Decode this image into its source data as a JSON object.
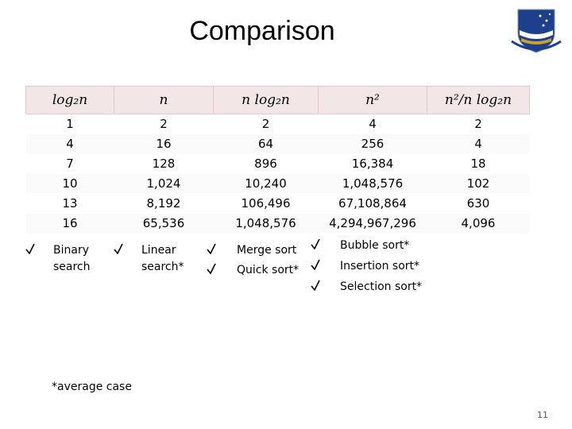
{
  "header": {
    "title": "Comparison"
  },
  "table": {
    "columns": [
      "log₂n",
      "n",
      "n log₂n",
      "n²",
      "n²/n log₂n"
    ],
    "rows": [
      [
        "1",
        "2",
        "2",
        "4",
        "2"
      ],
      [
        "4",
        "16",
        "64",
        "256",
        "4"
      ],
      [
        "7",
        "128",
        "896",
        "16,384",
        "18"
      ],
      [
        "10",
        "1,024",
        "10,240",
        "1,048,576",
        "102"
      ],
      [
        "13",
        "8,192",
        "106,496",
        "67,108,864",
        "630"
      ],
      [
        "16",
        "65,536",
        "1,048,576",
        "4,294,967,296",
        "4,096"
      ]
    ]
  },
  "lists": [
    {
      "items": [
        "Binary search"
      ]
    },
    {
      "items": [
        "Linear search*"
      ]
    },
    {
      "items": [
        "Merge sort",
        "Quick sort*"
      ]
    },
    {
      "items": [
        "Bubble sort*",
        "Insertion sort*",
        "Selection sort*"
      ]
    }
  ],
  "footnote": "*average case",
  "page_number": "11"
}
